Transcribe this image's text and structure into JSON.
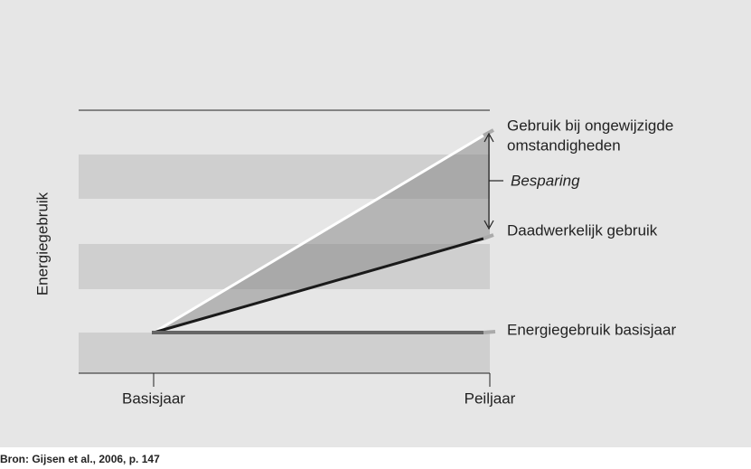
{
  "diagram": {
    "y_axis_label": "Energiegebruik",
    "x_labels": [
      "Basisjaar",
      "Peiljaar"
    ],
    "line_labels": {
      "unchanged": [
        "Gebruik bij ongewijzigde",
        "omstandigheden"
      ],
      "actual": "Daadwerkelijk gebruik",
      "base": "Energiegebruik basisjaar"
    },
    "annotation": "Besparing",
    "source": "Bron: Gijsen et al., 2006, p. 147"
  }
}
